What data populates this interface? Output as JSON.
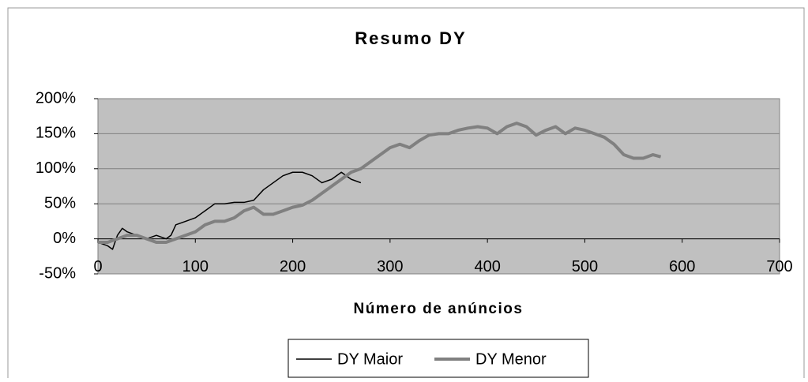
{
  "chart_data": {
    "type": "line",
    "title": "Resumo DY",
    "x_label": "Número de anúncios",
    "xlim": [
      0,
      700
    ],
    "xticks": [
      0,
      100,
      200,
      300,
      400,
      500,
      600,
      700
    ],
    "ylim": [
      -50,
      200
    ],
    "yticks": [
      {
        "value": -50,
        "label": "-50%"
      },
      {
        "value": 0,
        "label": "0%"
      },
      {
        "value": 50,
        "label": "50%"
      },
      {
        "value": 100,
        "label": "100%"
      },
      {
        "value": 150,
        "label": "150%"
      },
      {
        "value": 200,
        "label": "200%"
      }
    ],
    "grid": true,
    "legend": "bottom",
    "series": [
      {
        "name": "DY Maior",
        "color": "#000000",
        "x": [
          0,
          10,
          15,
          20,
          25,
          30,
          40,
          50,
          60,
          70,
          75,
          80,
          90,
          100,
          110,
          120,
          130,
          140,
          150,
          160,
          170,
          180,
          190,
          200,
          210,
          220,
          230,
          240,
          250,
          260,
          270
        ],
        "values": [
          -5,
          -10,
          -15,
          5,
          15,
          10,
          5,
          0,
          5,
          0,
          5,
          20,
          25,
          30,
          40,
          50,
          50,
          52,
          52,
          55,
          70,
          80,
          90,
          95,
          95,
          90,
          80,
          85,
          95,
          85,
          80
        ]
      },
      {
        "name": "DY Menor",
        "color": "#808080",
        "x": [
          0,
          10,
          20,
          30,
          40,
          50,
          60,
          70,
          80,
          90,
          100,
          110,
          120,
          130,
          140,
          150,
          160,
          170,
          180,
          190,
          200,
          210,
          220,
          230,
          240,
          250,
          260,
          270,
          280,
          290,
          300,
          310,
          320,
          330,
          340,
          350,
          360,
          370,
          380,
          390,
          400,
          410,
          420,
          430,
          440,
          450,
          460,
          470,
          480,
          490,
          500,
          510,
          520,
          530,
          540,
          550,
          560,
          570,
          578
        ],
        "values": [
          -5,
          -5,
          0,
          5,
          5,
          0,
          -5,
          -5,
          0,
          5,
          10,
          20,
          25,
          25,
          30,
          40,
          45,
          35,
          35,
          40,
          45,
          48,
          55,
          65,
          75,
          85,
          95,
          100,
          110,
          120,
          130,
          135,
          130,
          140,
          148,
          150,
          150,
          155,
          158,
          160,
          158,
          150,
          160,
          165,
          160,
          148,
          155,
          160,
          150,
          158,
          155,
          150,
          145,
          135,
          120,
          115,
          115,
          120,
          117
        ]
      }
    ]
  }
}
